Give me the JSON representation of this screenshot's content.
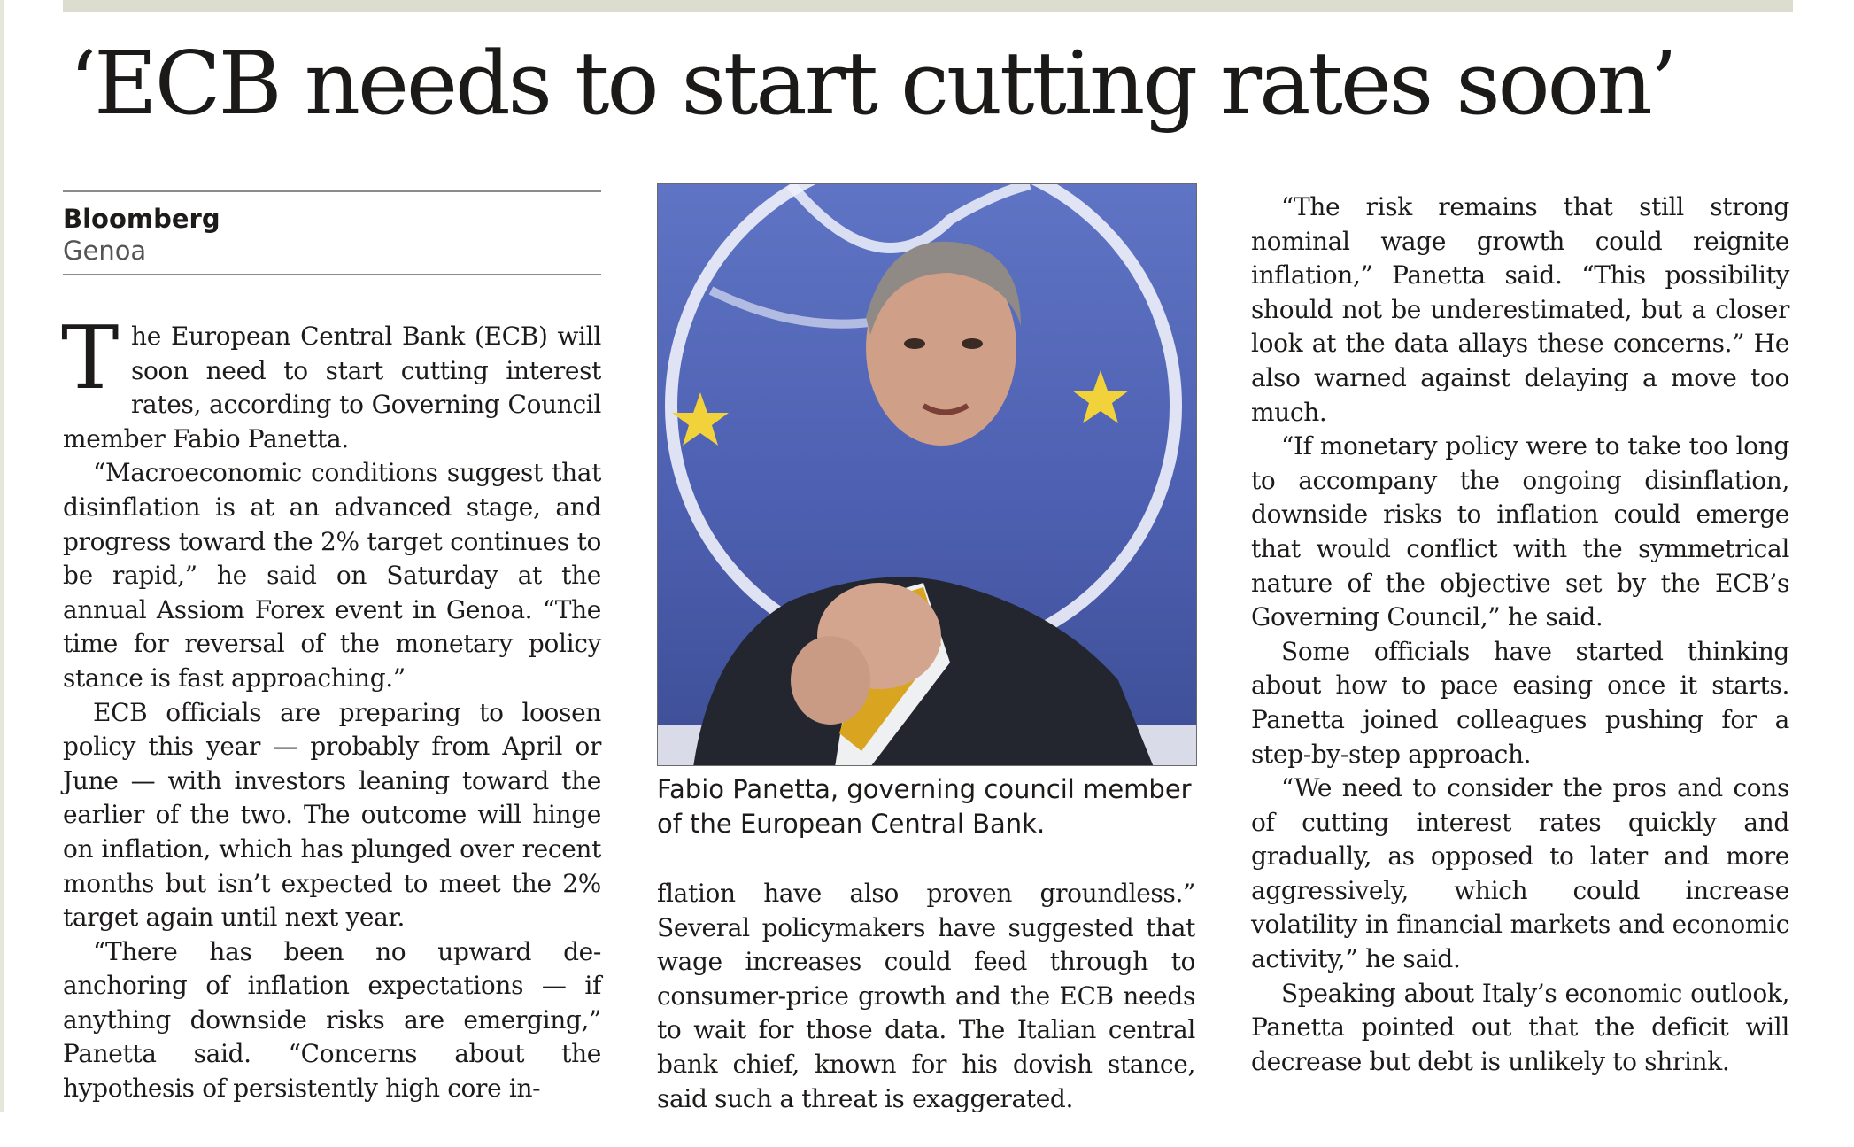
{
  "headline": "‘ECB needs to start cutting rates soon’",
  "byline": {
    "source": "Bloomberg",
    "place": "Genoa"
  },
  "dropcap": "T",
  "photo": {
    "caption": "Fabio Panetta, governing council member of the European Central Bank."
  },
  "column1": {
    "p1": "he European Central Bank (ECB) will soon need to start cutting interest rates, according to Governing Council member Fabio Panetta.",
    "p2": "“Macroeconomic conditions suggest that disinflation is at an advanced stage, and progress toward the 2% target continues to be rapid,” he said on Saturday at the annual Assiom Forex event in Genoa. “The time for reversal of the monetary policy stance is fast approaching.”",
    "p3": "ECB officials are preparing to loosen policy this year — probably from April or June — with investors leaning toward the earlier of the two. The outcome will hinge on inflation, which has plunged over recent months but isn’t expected to meet the 2% target again until next year.",
    "p4": "“There has been no upward de-anchoring of inflation expectations — if anything downside risks are emerging,” Panetta said. “Concerns about the hypothesis of persistently high core in-"
  },
  "column2": {
    "p1": "flation have also proven groundless.” Several policymakers have suggested that wage increases could feed through to consumer-price growth and the ECB needs to wait for those data. The Italian central bank chief, known for his dovish stance, said such a threat is exaggerated."
  },
  "column3": {
    "p1": "“The risk remains that still strong nominal wage growth could reignite inflation,” Panetta said. “This possibility should not be underestimated, but a closer look at the data allays these concerns.” He also warned against delaying a move too much.",
    "p2": "“If monetary policy were to take too long to accompany the ongoing disinflation, downside risks to inflation could emerge that would conflict with the symmetrical nature of the objective set by the ECB’s Governing Council,” he said.",
    "p3": "Some officials have started thinking about how to pace easing once it starts. Panetta joined colleagues pushing for a step-by-step approach.",
    "p4": "“We need to consider the pros and cons of cutting interest rates quickly and gradually, as opposed to later and more aggressively, which could increase volatility in financial markets and economic activity,” he said.",
    "p5": "Speaking about Italy’s economic outlook, Panetta pointed out that the deficit will decrease but debt is unlikely to shrink."
  },
  "colors": {
    "photo_background": "#4d5fb0",
    "tie": "#d9a520",
    "star": "#f1d23a"
  }
}
